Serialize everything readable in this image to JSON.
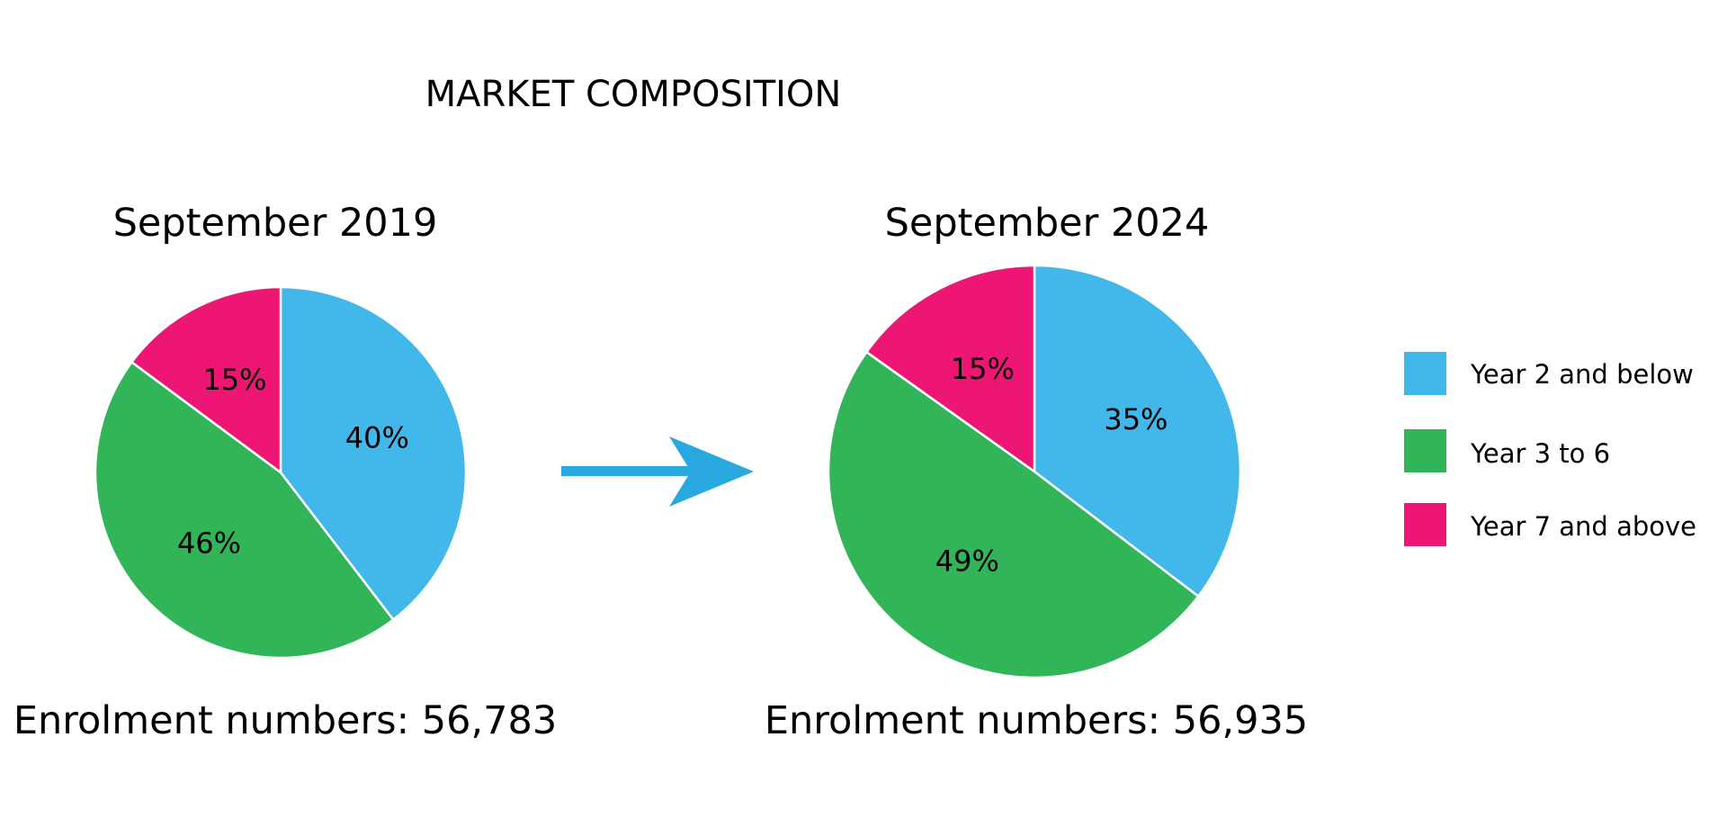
{
  "chart_data": {
    "type": "pie",
    "title": "MARKET COMPOSITION",
    "categories": [
      "Year 2 and below",
      "Year 3 to 6",
      "Year 7 and above"
    ],
    "legend": {
      "placement": "right",
      "items": [
        {
          "label": "Year 2 and below",
          "color": "#41b7ea"
        },
        {
          "label": "Year 3 to 6",
          "color": "#32b458"
        },
        {
          "label": "Year 7 and above",
          "color": "#ee1675"
        }
      ]
    },
    "pies": [
      {
        "title": "September 2019",
        "enrolment_text": "Enrolment numbers: 56,783",
        "slices": [
          {
            "category": "Year 2 and below",
            "value": 40,
            "label": "40%",
            "color": "#41b7ea"
          },
          {
            "category": "Year 3 to 6",
            "value": 46,
            "label": "46%",
            "color": "#32b458"
          },
          {
            "category": "Year 7 and above",
            "value": 15,
            "label": "15%",
            "color": "#ee1675"
          }
        ]
      },
      {
        "title": "September 2024",
        "enrolment_text": "Enrolment numbers: 56,935",
        "slices": [
          {
            "category": "Year 2 and below",
            "value": 35,
            "label": "35%",
            "color": "#41b7ea"
          },
          {
            "category": "Year 3 to 6",
            "value": 49,
            "label": "49%",
            "color": "#32b458"
          },
          {
            "category": "Year 7 and above",
            "value": 15,
            "label": "15%",
            "color": "#ee1675"
          }
        ]
      }
    ],
    "arrow_color": "#29a8e0"
  }
}
